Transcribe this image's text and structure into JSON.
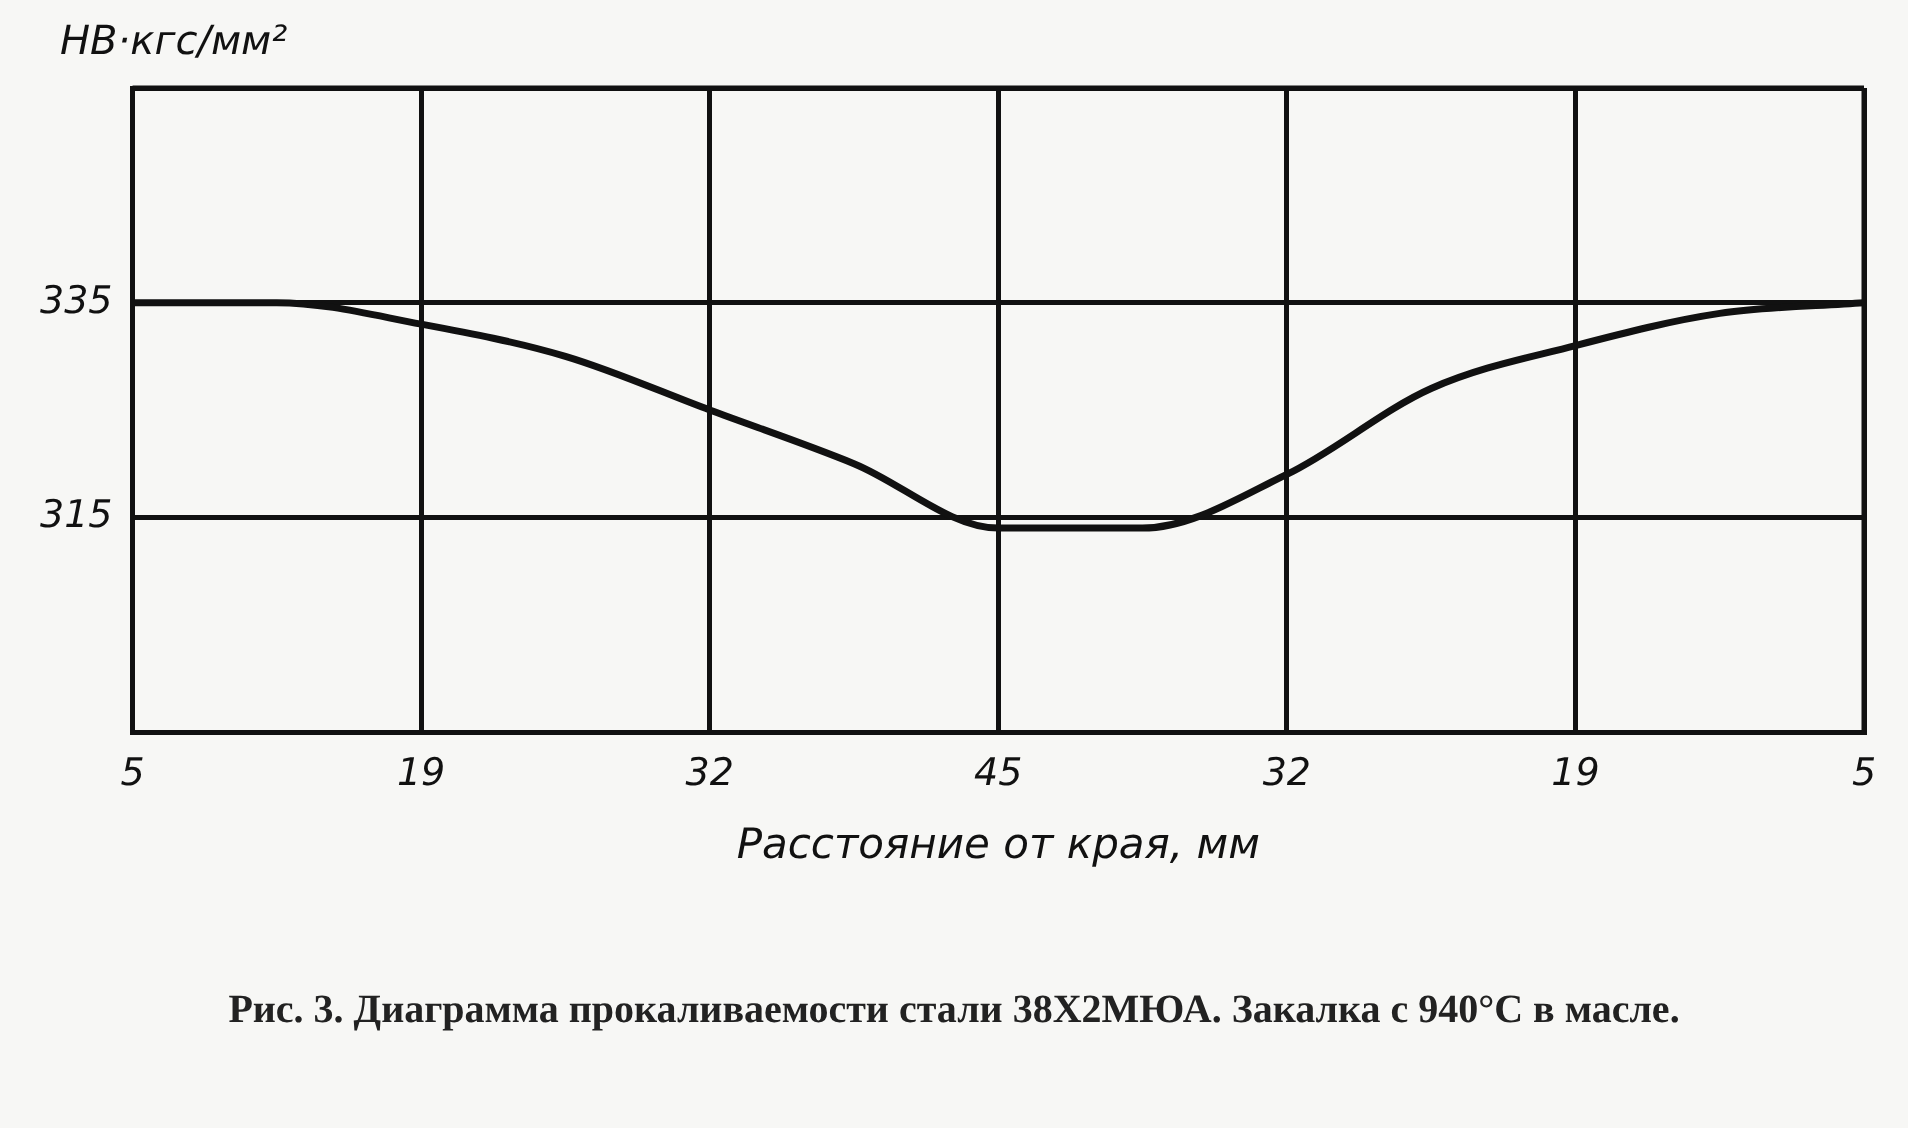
{
  "chart_data": {
    "type": "line",
    "ylabel": "НВ·кгс/мм²",
    "xlabel": "Расстояние от края, мм",
    "annotations": [
      "Рис. 3. Диаграмма прокаливаемости стали 38Х2МЮА. Закалка с 940°С в масле."
    ],
    "categories": [
      "5",
      null,
      "19",
      null,
      "32",
      null,
      "45",
      null,
      "32",
      null,
      "19",
      null,
      "5"
    ],
    "series": [
      {
        "color": "#111111",
        "values": [
          335,
          335,
          333,
          330,
          325,
          320,
          314,
          314,
          319,
          327,
          331,
          334,
          335
        ]
      }
    ],
    "ylim": [
      295,
      355
    ],
    "yticks": [
      {
        "value": 295,
        "label": null
      },
      315,
      335,
      {
        "value": 355,
        "label": null
      }
    ],
    "grid": true
  }
}
